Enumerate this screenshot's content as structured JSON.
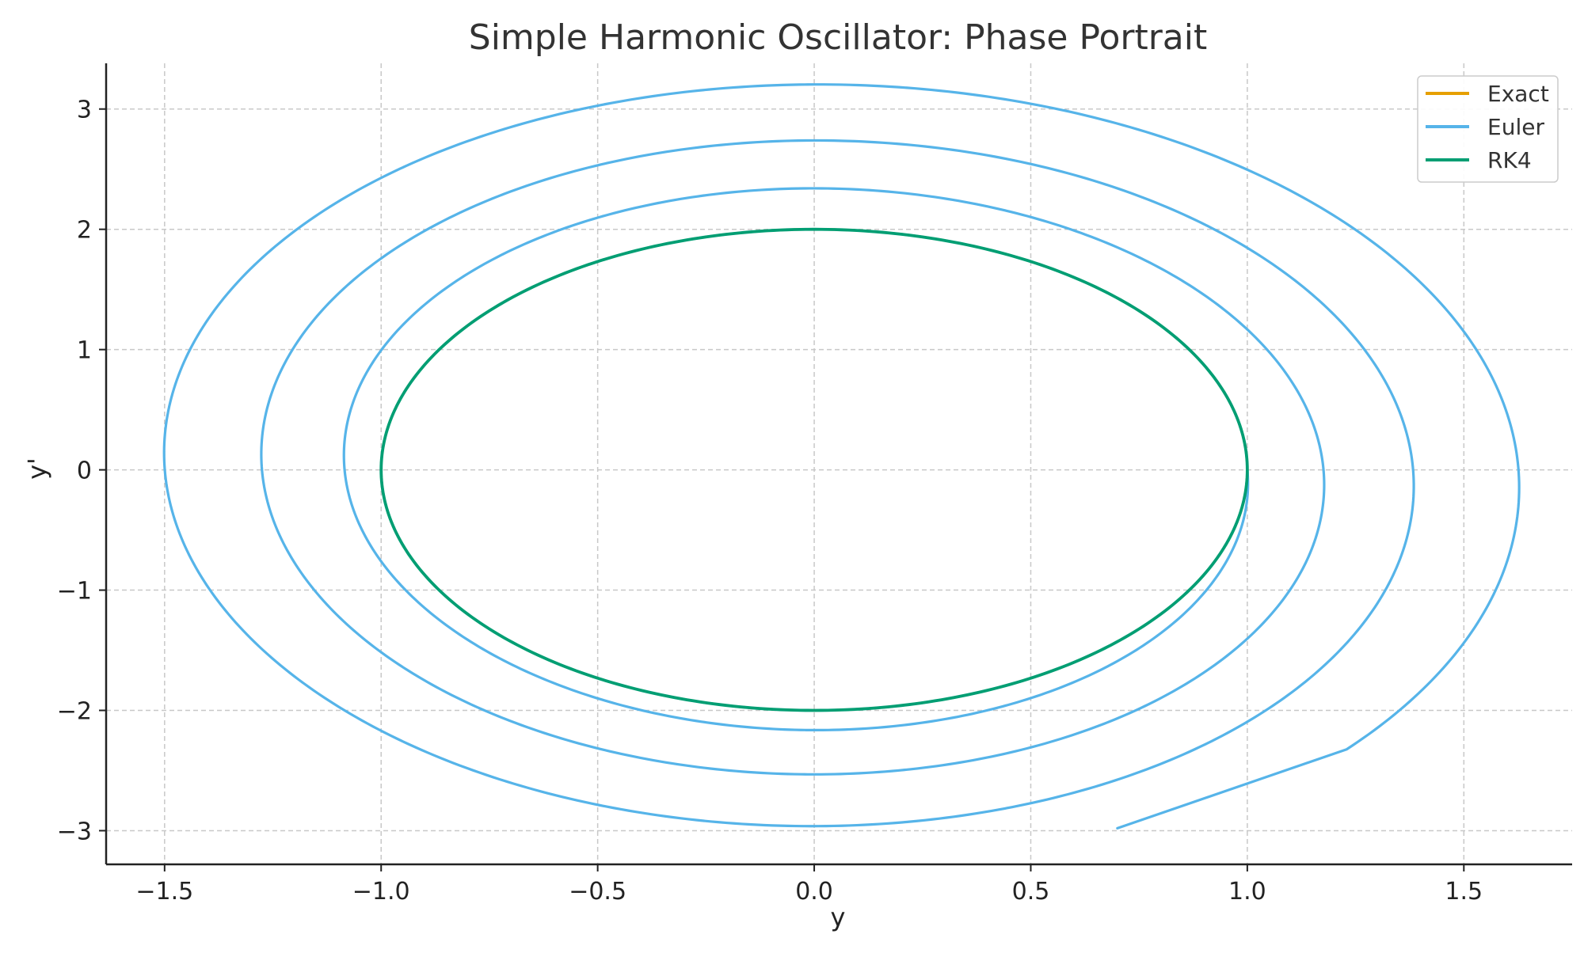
{
  "chart_data": {
    "type": "line",
    "title": "Simple Harmonic Oscillator: Phase Portrait",
    "xlabel": "y",
    "ylabel": "y'",
    "xlim": [
      -1.635,
      1.75
    ],
    "ylim": [
      -3.28,
      3.38
    ],
    "xticks": [
      {
        "value": -1.5,
        "label": "−1.5"
      },
      {
        "value": -1.0,
        "label": "−1.0"
      },
      {
        "value": -0.5,
        "label": "−0.5"
      },
      {
        "value": 0.0,
        "label": "0.0"
      },
      {
        "value": 0.5,
        "label": "0.5"
      },
      {
        "value": 1.0,
        "label": "1.0"
      },
      {
        "value": 1.5,
        "label": "1.5"
      }
    ],
    "yticks": [
      {
        "value": 3,
        "label": "3"
      },
      {
        "value": 2,
        "label": "2"
      },
      {
        "value": 1,
        "label": "1"
      },
      {
        "value": 0,
        "label": "0"
      },
      {
        "value": -1,
        "label": "−1"
      },
      {
        "value": -2,
        "label": "−2"
      },
      {
        "value": -3,
        "label": "−3"
      }
    ],
    "grid": true,
    "legend_position": "top-right",
    "series": [
      {
        "name": "Exact",
        "color": "#E69F00",
        "model": "ellipse",
        "points": [
          [
            1.0,
            0.0
          ],
          [
            0.0,
            2.0
          ],
          [
            -1.0,
            0.0
          ],
          [
            0.0,
            -2.0
          ],
          [
            1.0,
            0.0
          ]
        ]
      },
      {
        "name": "Euler",
        "color": "#56B4E9",
        "model": "euler-spiral",
        "points": [
          [
            1.0,
            0.0
          ],
          [
            0.0,
            -2.08
          ],
          [
            -1.08,
            0.0
          ],
          [
            0.0,
            2.25
          ],
          [
            1.17,
            0.0
          ],
          [
            0.0,
            -2.43
          ],
          [
            -1.27,
            0.0
          ],
          [
            0.0,
            2.63
          ],
          [
            1.37,
            0.0
          ],
          [
            0.0,
            -2.84
          ],
          [
            -1.48,
            0.0
          ],
          [
            0.0,
            3.08
          ],
          [
            1.6,
            0.0
          ],
          [
            0.7,
            -2.98
          ]
        ]
      },
      {
        "name": "RK4",
        "color": "#009E73",
        "model": "ellipse",
        "points": [
          [
            1.0,
            0.0
          ],
          [
            0.0,
            2.0
          ],
          [
            -1.0,
            0.0
          ],
          [
            0.0,
            -2.0
          ],
          [
            1.0,
            0.0
          ]
        ]
      }
    ]
  }
}
